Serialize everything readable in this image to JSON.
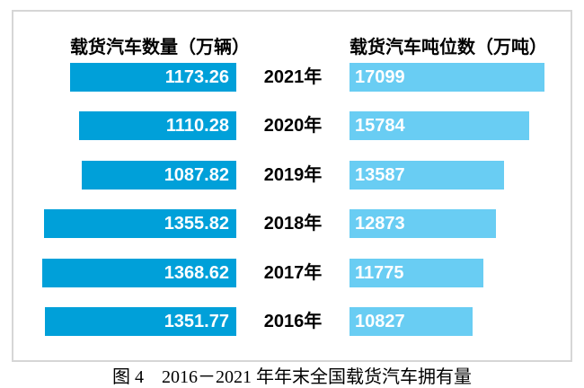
{
  "figure": {
    "caption": "图 4　2016－2021 年年末全国载货汽车拥有量"
  },
  "chart_data": {
    "type": "bar",
    "variant": "horizontal-tornado",
    "title": "图 4　2016－2021 年年末全国载货汽车拥有量",
    "categories": [
      "2021年",
      "2020年",
      "2019年",
      "2018年",
      "2017年",
      "2016年"
    ],
    "series": [
      {
        "name": "载货汽车数量（万辆）",
        "side": "left",
        "values": [
          1173.26,
          1110.28,
          1087.82,
          1355.82,
          1368.62,
          1351.77
        ],
        "labels": [
          "1173.26",
          "1110.28",
          "1087.82",
          "1355.82",
          "1368.62",
          "1351.77"
        ],
        "axis_max": 1368.62,
        "color": "#00a0d9"
      },
      {
        "name": "载货汽车吨位数（万吨）",
        "side": "right",
        "values": [
          17099,
          15784,
          13587,
          12873,
          11775,
          10827
        ],
        "labels": [
          "17099",
          "15784",
          "13587",
          "12873",
          "11775",
          "10827"
        ],
        "axis_max": 17099,
        "color": "#69cdf3"
      }
    ],
    "grid": false,
    "legend_position": "column-headers",
    "value_label_color": "#ffffff",
    "frame_border_color": "#d6d6d6"
  }
}
